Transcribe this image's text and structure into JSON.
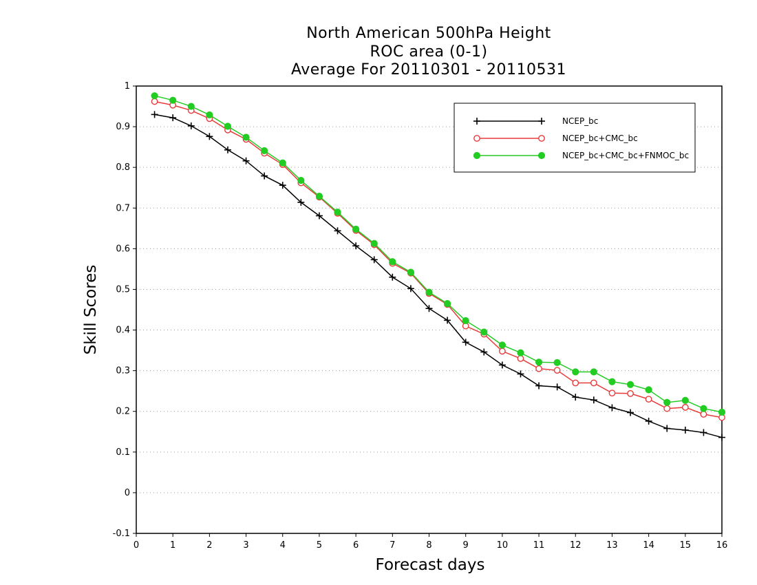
{
  "chart_data": {
    "type": "line",
    "title": [
      "North American 500hPa Height",
      "ROC area (0-1)",
      "Average For 20110301 - 20110531"
    ],
    "xlabel": "Forecast days",
    "ylabel": "Skill Scores",
    "xlim": [
      0,
      16
    ],
    "ylim": [
      -0.1,
      1
    ],
    "xticks": [
      "0",
      "1",
      "2",
      "3",
      "4",
      "5",
      "6",
      "7",
      "8",
      "9",
      "10",
      "11",
      "12",
      "13",
      "14",
      "15",
      "16"
    ],
    "yticks": [
      "-0.1",
      "0",
      "0.1",
      "0.2",
      "0.3",
      "0.4",
      "0.5",
      "0.6",
      "0.7",
      "0.8",
      "0.9",
      "1"
    ],
    "grid": "horizontal dotted",
    "legend_position": "top-right",
    "x": [
      0.5,
      1,
      1.5,
      2,
      2.5,
      3,
      3.5,
      4,
      4.5,
      5,
      5.5,
      6,
      6.5,
      7,
      7.5,
      8,
      8.5,
      9,
      9.5,
      10,
      10.5,
      11,
      11.5,
      12,
      12.5,
      13,
      13.5,
      14,
      14.5,
      15,
      15.5,
      16
    ],
    "series": [
      {
        "name": "NCEP_bc",
        "color": "#000000",
        "marker": "plus",
        "values": [
          0.93,
          0.922,
          0.902,
          0.876,
          0.843,
          0.816,
          0.779,
          0.756,
          0.714,
          0.681,
          0.644,
          0.607,
          0.573,
          0.53,
          0.502,
          0.453,
          0.424,
          0.37,
          0.346,
          0.314,
          0.292,
          0.263,
          0.26,
          0.235,
          0.228,
          0.209,
          0.197,
          0.176,
          0.158,
          0.154,
          0.148,
          0.136
        ]
      },
      {
        "name": "NCEP_bc+CMC_bc",
        "color": "#e83a3a",
        "marker": "open-circle",
        "values": [
          0.962,
          0.953,
          0.94,
          0.92,
          0.892,
          0.869,
          0.835,
          0.807,
          0.762,
          0.727,
          0.687,
          0.645,
          0.61,
          0.564,
          0.54,
          0.49,
          0.463,
          0.41,
          0.39,
          0.348,
          0.33,
          0.305,
          0.301,
          0.27,
          0.27,
          0.245,
          0.244,
          0.23,
          0.207,
          0.21,
          0.193,
          0.185
        ]
      },
      {
        "name": "NCEP_bc+CMC_bc+FNMOC_bc",
        "color": "#22cc22",
        "marker": "filled-circle",
        "values": [
          0.976,
          0.965,
          0.95,
          0.929,
          0.901,
          0.874,
          0.841,
          0.811,
          0.768,
          0.729,
          0.69,
          0.648,
          0.613,
          0.568,
          0.542,
          0.493,
          0.465,
          0.423,
          0.395,
          0.363,
          0.344,
          0.321,
          0.32,
          0.297,
          0.297,
          0.273,
          0.266,
          0.253,
          0.222,
          0.227,
          0.207,
          0.198
        ]
      }
    ]
  }
}
